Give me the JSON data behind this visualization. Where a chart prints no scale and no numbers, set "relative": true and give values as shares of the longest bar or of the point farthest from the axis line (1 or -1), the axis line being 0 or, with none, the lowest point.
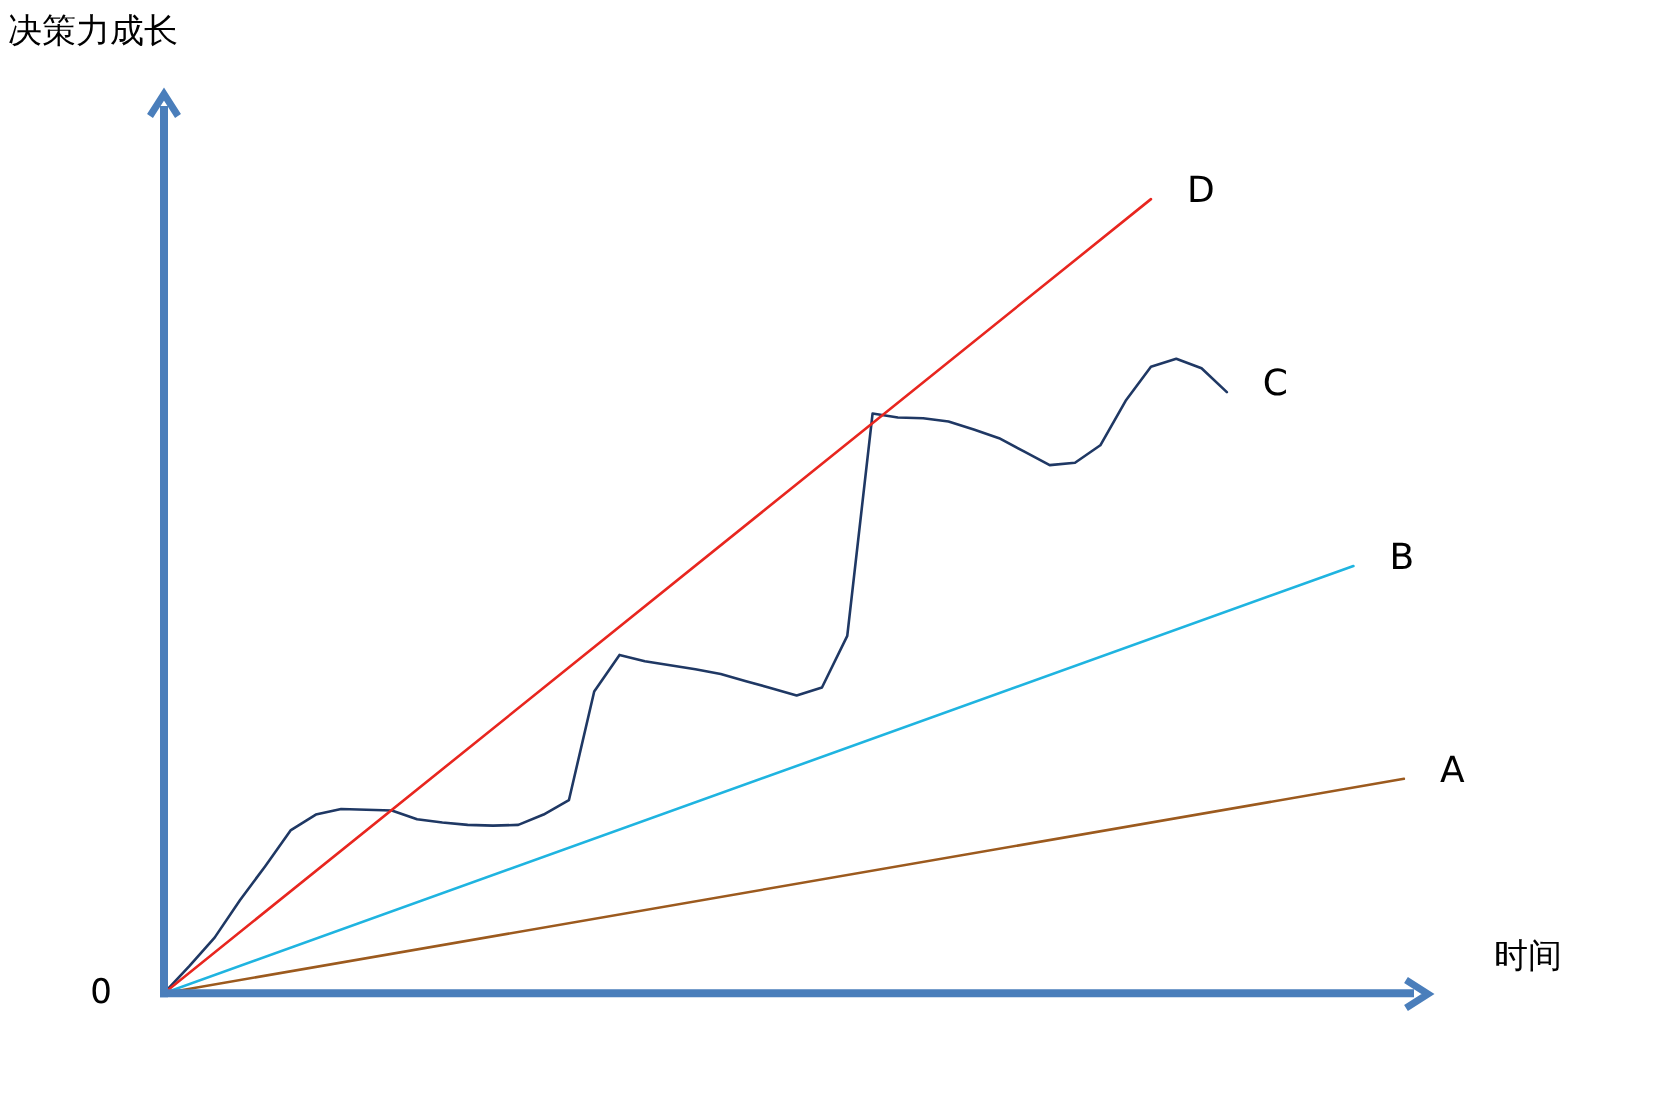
{
  "chart_data": {
    "type": "line",
    "relative": true,
    "xlabel": "时间",
    "ylabel": "决策力成长",
    "annotations": [
      "0"
    ],
    "marker": "none",
    "legend": "right",
    "line_style": "solid",
    "categories": [
      null,
      null,
      null,
      null,
      null,
      null,
      null,
      null,
      null,
      null,
      null,
      null,
      null,
      null,
      null,
      null,
      null,
      null,
      null,
      null,
      null,
      null,
      null,
      null,
      null,
      null,
      null,
      null,
      null,
      null,
      null,
      null,
      null,
      null,
      null,
      null,
      null,
      null,
      null,
      null,
      null,
      null,
      null,
      null,
      null,
      null,
      null,
      null,
      null,
      null
    ],
    "series": [
      {
        "name": "D",
        "color": "#e8261f",
        "values": [
          0,
          null,
          null,
          null,
          null,
          null,
          null,
          null,
          null,
          null,
          null,
          null,
          null,
          null,
          null,
          null,
          null,
          null,
          null,
          null,
          null,
          null,
          null,
          null,
          null,
          null,
          null,
          null,
          null,
          null,
          null,
          null,
          null,
          null,
          null,
          null,
          null,
          null,
          null,
          1,
          null,
          null,
          null,
          null,
          null,
          null,
          null,
          null,
          null,
          null
        ]
      },
      {
        "name": "C",
        "color": "#1f3864",
        "values": [
          0,
          0.034,
          0.07,
          0.117,
          0.16,
          0.205,
          0.225,
          0.232,
          0.231,
          0.23,
          0.219,
          0.215,
          0.212,
          0.211,
          0.212,
          0.225,
          0.243,
          0.38,
          0.426,
          0.418,
          0.413,
          0.408,
          0.402,
          0.393,
          0.384,
          0.375,
          0.385,
          0.45,
          0.73,
          0.725,
          0.724,
          0.72,
          0.71,
          0.699,
          0.682,
          0.665,
          0.668,
          0.69,
          0.746,
          0.789,
          0.799,
          0.787,
          0.757,
          null,
          null,
          null,
          null,
          null,
          null,
          null
        ]
      },
      {
        "name": "B",
        "color": "#1fb4e0",
        "values": [
          0,
          null,
          null,
          null,
          null,
          null,
          null,
          null,
          null,
          null,
          null,
          null,
          null,
          null,
          null,
          null,
          null,
          null,
          null,
          null,
          null,
          null,
          null,
          null,
          null,
          null,
          null,
          null,
          null,
          null,
          null,
          null,
          null,
          null,
          null,
          null,
          null,
          null,
          null,
          null,
          null,
          null,
          null,
          null,
          null,
          null,
          null,
          0.538,
          null,
          null
        ]
      },
      {
        "name": "A",
        "color": "#9c5a1e",
        "values": [
          0,
          null,
          null,
          null,
          null,
          null,
          null,
          null,
          null,
          null,
          null,
          null,
          null,
          null,
          null,
          null,
          null,
          null,
          null,
          null,
          null,
          null,
          null,
          null,
          null,
          null,
          null,
          null,
          null,
          null,
          null,
          null,
          null,
          null,
          null,
          null,
          null,
          null,
          null,
          null,
          null,
          null,
          null,
          null,
          null,
          null,
          null,
          null,
          null,
          0.27
        ]
      }
    ]
  }
}
